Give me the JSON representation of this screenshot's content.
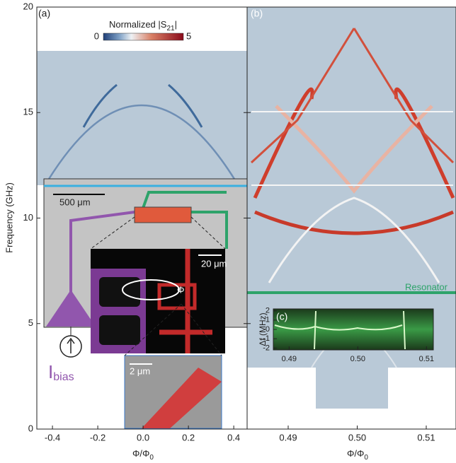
{
  "chart_data": [
    {
      "type": "heatmap",
      "panel": "(a)",
      "xlabel": {
        "text": "Φ/Φ",
        "sub": "0"
      },
      "ylabel": "Frequency (GHz)",
      "xlim": [
        -0.469,
        0.459
      ],
      "ylim": [
        0,
        20
      ],
      "xticks": [
        {
          "value": -0.4,
          "label": "-0.4"
        },
        {
          "value": -0.2,
          "label": "-0.2"
        },
        {
          "value": 0,
          "label": "0.0"
        },
        {
          "value": 0.2,
          "label": "0.2"
        },
        {
          "value": 0.4,
          "label": "0.4"
        }
      ],
      "yticks": [
        0,
        5,
        10,
        15,
        20
      ],
      "colorbar": {
        "label": {
          "text": "Normalized |S",
          "sub": "21",
          "end": "|"
        },
        "ticks": [
          0,
          5
        ]
      },
      "annotations": {
        "scale_chip": "500 μm",
        "scale_loop": "20 μm",
        "scale_junction": "2 μm",
        "flux": "Φ",
        "bias": {
          "text": "I",
          "sub": "bias"
        }
      }
    },
    {
      "type": "heatmap",
      "panel": "(b)",
      "xlabel": {
        "text": "Φ/Φ",
        "sub": "0"
      },
      "xlim": [
        0.48405,
        0.51431
      ],
      "ylim": [
        0,
        20
      ],
      "xticks": [
        {
          "value": 0.49,
          "label": "0.49"
        },
        {
          "value": 0.5,
          "label": "0.50"
        },
        {
          "value": 0.51,
          "label": "0.51"
        }
      ],
      "yticks": [
        0,
        5,
        10,
        15,
        20
      ],
      "resonator": "Resonator"
    },
    {
      "type": "heatmap",
      "panel": "(c)",
      "ylabel": "Δf (MHz)",
      "xlim": [
        0.4877,
        0.511
      ],
      "ylim": [
        -2.2,
        2.2
      ],
      "xticks": [
        {
          "value": 0.49,
          "label": "0.49"
        },
        {
          "value": 0.5,
          "label": "0.50"
        },
        {
          "value": 0.51,
          "label": "0.51"
        }
      ],
      "yticks": [
        2,
        1,
        0,
        -1,
        -2
      ]
    }
  ]
}
